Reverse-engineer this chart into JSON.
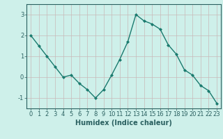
{
  "x": [
    0,
    1,
    2,
    3,
    4,
    5,
    6,
    7,
    8,
    9,
    10,
    11,
    12,
    13,
    14,
    15,
    16,
    17,
    18,
    19,
    20,
    21,
    22,
    23
  ],
  "y": [
    2.0,
    1.5,
    1.0,
    0.5,
    0.0,
    0.1,
    -0.3,
    -0.6,
    -1.0,
    -0.6,
    0.1,
    0.85,
    1.7,
    3.0,
    2.7,
    2.55,
    2.3,
    1.55,
    1.1,
    0.35,
    0.1,
    -0.4,
    -0.65,
    -1.25
  ],
  "title": "",
  "xlabel": "Humidex (Indice chaleur)",
  "ylabel": "",
  "xlim": [
    -0.5,
    23.5
  ],
  "ylim": [
    -1.5,
    3.5
  ],
  "yticks": [
    -1,
    0,
    1,
    2,
    3
  ],
  "xticks": [
    0,
    1,
    2,
    3,
    4,
    5,
    6,
    7,
    8,
    9,
    10,
    11,
    12,
    13,
    14,
    15,
    16,
    17,
    18,
    19,
    20,
    21,
    22,
    23
  ],
  "line_color": "#1a7a6e",
  "marker": "D",
  "marker_size": 2.0,
  "bg_color": "#cef0ea",
  "grid_color_major": "#c8b8b8",
  "grid_color_minor": "#dce8e6",
  "line_width": 1.0,
  "xlabel_fontsize": 7,
  "tick_fontsize": 6,
  "spine_color": "#2a6060"
}
